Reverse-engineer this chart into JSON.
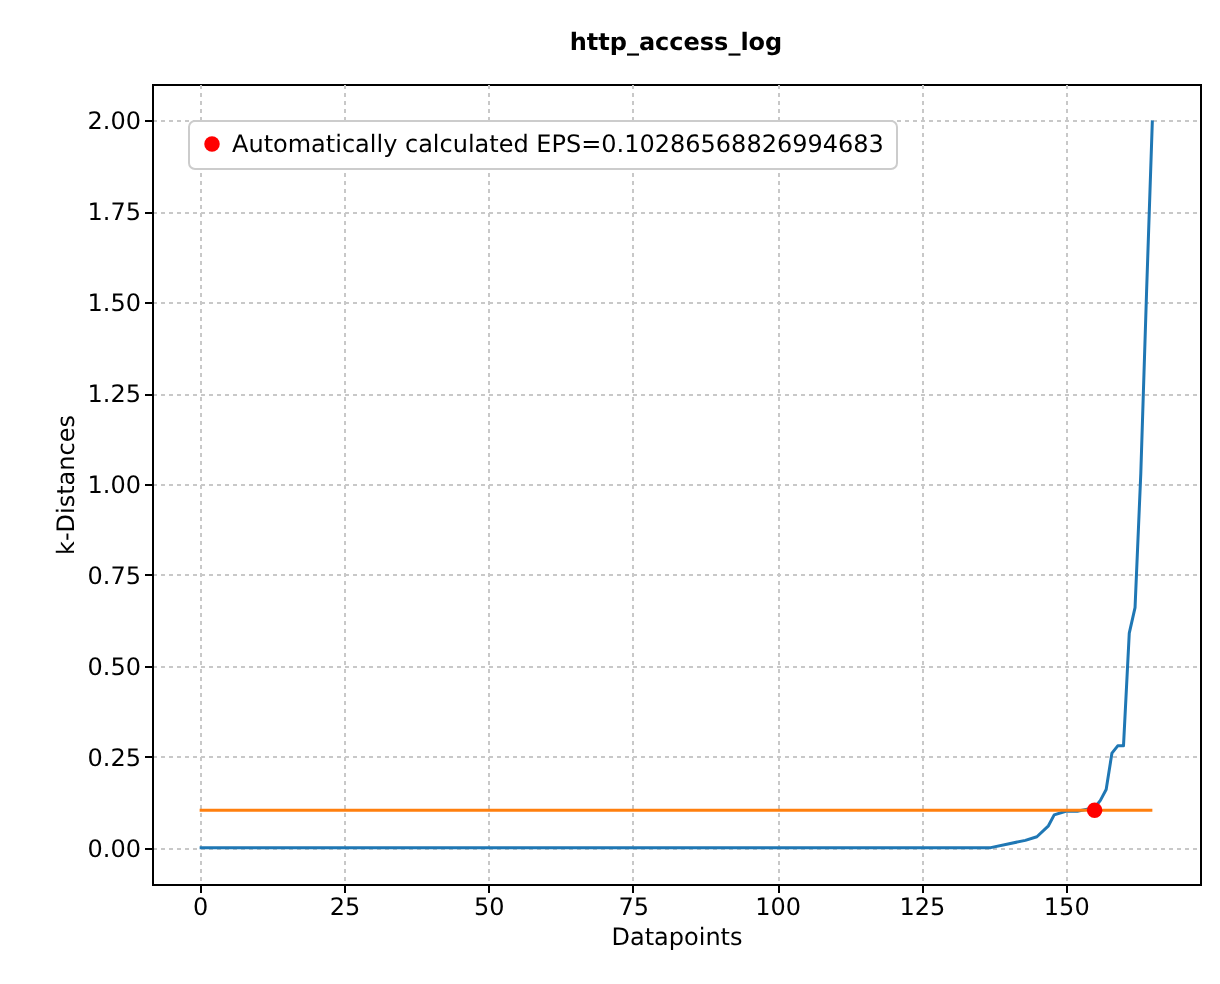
{
  "chart_data": {
    "type": "line",
    "title": "http_access_log",
    "xlabel": "Datapoints",
    "ylabel": "k-Distances",
    "xlim": [
      -8.25,
      173.25
    ],
    "ylim": [
      -0.1,
      2.1
    ],
    "xticks": [
      0,
      25,
      50,
      75,
      100,
      125,
      150
    ],
    "yticks": [
      {
        "value": 0,
        "label": "0.00"
      },
      {
        "value": 0.25,
        "label": "0.25"
      },
      {
        "value": 0.5,
        "label": "0.50"
      },
      {
        "value": 0.75,
        "label": "0.75"
      },
      {
        "value": 1,
        "label": "1.00"
      },
      {
        "value": 1.25,
        "label": "1.25"
      },
      {
        "value": 1.5,
        "label": "1.50"
      },
      {
        "value": 1.75,
        "label": "1.75"
      },
      {
        "value": 2,
        "label": "2.00"
      }
    ],
    "grid": true,
    "legend": "top left",
    "line_style": "solid",
    "series": [
      {
        "color": "#1f77b4",
        "marker": "none",
        "x": [
          0,
          130,
          137,
          140,
          143,
          145,
          147,
          148,
          150,
          152,
          155,
          156,
          157,
          158,
          159,
          160,
          161,
          162,
          163,
          164,
          165
        ],
        "values": [
          0,
          0,
          0,
          0.01,
          0.02,
          0.03,
          0.06,
          0.09,
          0.1,
          0.1,
          0.11,
          0.13,
          0.16,
          0.26,
          0.28,
          0.28,
          0.59,
          0.66,
          1.03,
          1.53,
          2.0
        ]
      },
      {
        "color": "#ff7f0e",
        "marker": "none",
        "x": [
          0,
          165
        ],
        "values": [
          0.103,
          0.103
        ]
      },
      {
        "type": "scatter",
        "marker": "circle",
        "name": "Automatically calculated EPS=0.10286568826994683",
        "color": "#ff0000",
        "x": [
          155
        ],
        "values": [
          0.103
        ]
      }
    ]
  }
}
